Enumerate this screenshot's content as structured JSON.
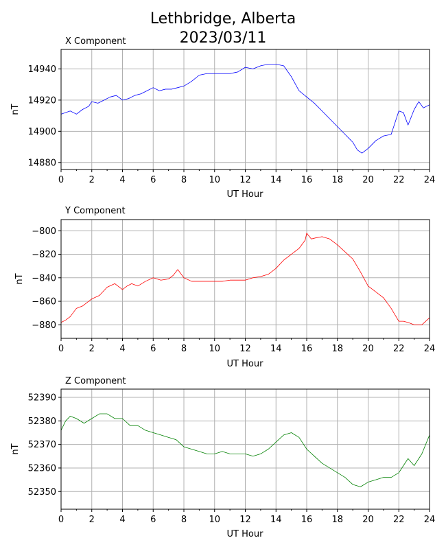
{
  "title_line1": "Lethbridge, Alberta",
  "title_line2": "2023/03/11",
  "chart_data": [
    {
      "type": "line",
      "title": "X Component",
      "xlabel": "UT Hour",
      "ylabel": "nT",
      "xlim": [
        0,
        24
      ],
      "ylim": [
        14875.5,
        14952.5
      ],
      "xticks": [
        0,
        2,
        4,
        6,
        8,
        10,
        12,
        14,
        16,
        18,
        20,
        22,
        24
      ],
      "yticks": [
        14880,
        14900,
        14920,
        14940
      ],
      "grid": true,
      "color": "#0000ff",
      "series": [
        {
          "x": [
            0,
            0.3,
            0.6,
            1.0,
            1.4,
            1.8,
            2.0,
            2.4,
            2.8,
            3.2,
            3.6,
            4.0,
            4.4,
            4.8,
            5.2,
            5.6,
            6.0,
            6.4,
            6.8,
            7.2,
            7.6,
            8.0,
            8.5,
            9.0,
            9.5,
            10.0,
            10.5,
            11.0,
            11.5,
            12.0,
            12.5,
            13.0,
            13.5,
            14.0,
            14.5,
            15.0,
            15.5,
            16.0,
            16.5,
            17.0,
            17.5,
            18.0,
            18.5,
            19.0,
            19.3,
            19.6,
            20.0,
            20.5,
            21.0,
            21.5,
            22.0,
            22.3,
            22.6,
            23.0,
            23.3,
            23.6,
            24.0
          ],
          "y": [
            14911,
            14912,
            14913,
            14911,
            14914,
            14916,
            14919,
            14918,
            14920,
            14922,
            14923,
            14920,
            14921,
            14923,
            14924,
            14926,
            14928,
            14926,
            14927,
            14927,
            14928,
            14929,
            14932,
            14936,
            14937,
            14937,
            14937,
            14937,
            14938,
            14941,
            14940,
            14942,
            14943,
            14943,
            14942,
            14935,
            14926,
            14922,
            14918,
            14913,
            14908,
            14903,
            14898,
            14893,
            14888,
            14886,
            14889,
            14894,
            14897,
            14898,
            14913,
            14912,
            14904,
            14914,
            14919,
            14915,
            14917
          ]
        }
      ]
    },
    {
      "type": "line",
      "title": "Y Component",
      "xlabel": "UT Hour",
      "ylabel": "nT",
      "xlim": [
        0,
        24
      ],
      "ylim": [
        -891.5,
        -790.5
      ],
      "xticks": [
        0,
        2,
        4,
        6,
        8,
        10,
        12,
        14,
        16,
        18,
        20,
        22,
        24
      ],
      "yticks": [
        -880,
        -860,
        -840,
        -820,
        -800
      ],
      "grid": true,
      "color": "#ff0000",
      "series": [
        {
          "x": [
            0,
            0.3,
            0.6,
            1.0,
            1.4,
            1.8,
            2.0,
            2.5,
            3.0,
            3.5,
            4.0,
            4.3,
            4.6,
            5.0,
            5.5,
            6.0,
            6.5,
            7.0,
            7.3,
            7.6,
            8.0,
            8.5,
            9.0,
            9.5,
            10.0,
            10.5,
            11.0,
            11.5,
            12.0,
            12.5,
            13.0,
            13.5,
            14.0,
            14.5,
            15.0,
            15.5,
            15.9,
            16.0,
            16.3,
            16.6,
            17.0,
            17.5,
            18.0,
            18.5,
            19.0,
            19.5,
            20.0,
            20.5,
            21.0,
            21.5,
            22.0,
            22.3,
            22.6,
            23.0,
            23.5,
            24.0
          ],
          "y": [
            -878,
            -876,
            -873,
            -866,
            -864,
            -860,
            -858,
            -855,
            -848,
            -845,
            -850,
            -847,
            -845,
            -847,
            -843,
            -840,
            -842,
            -841,
            -838,
            -833,
            -840,
            -843,
            -843,
            -843,
            -843,
            -843,
            -842,
            -842,
            -842,
            -840,
            -839,
            -837,
            -832,
            -825,
            -820,
            -815,
            -808,
            -802,
            -807,
            -806,
            -805,
            -807,
            -812,
            -818,
            -824,
            -835,
            -847,
            -852,
            -857,
            -866,
            -877,
            -877,
            -878,
            -880,
            -880,
            -874
          ]
        }
      ]
    },
    {
      "type": "line",
      "title": "Z Component",
      "xlabel": "UT Hour",
      "ylabel": "nT",
      "xlim": [
        0,
        24
      ],
      "ylim": [
        52342.5,
        52393.5
      ],
      "xticks": [
        0,
        2,
        4,
        6,
        8,
        10,
        12,
        14,
        16,
        18,
        20,
        22,
        24
      ],
      "yticks": [
        52350,
        52360,
        52370,
        52380,
        52390
      ],
      "grid": true,
      "color": "#008000",
      "series": [
        {
          "x": [
            0,
            0.3,
            0.6,
            1.0,
            1.5,
            2.0,
            2.5,
            3.0,
            3.5,
            4.0,
            4.5,
            5.0,
            5.5,
            6.0,
            6.5,
            7.0,
            7.5,
            8.0,
            8.5,
            9.0,
            9.5,
            10.0,
            10.5,
            11.0,
            11.5,
            12.0,
            12.5,
            13.0,
            13.5,
            14.0,
            14.5,
            15.0,
            15.5,
            16.0,
            16.5,
            17.0,
            17.5,
            18.0,
            18.5,
            19.0,
            19.5,
            20.0,
            20.5,
            21.0,
            21.5,
            22.0,
            22.3,
            22.6,
            23.0,
            23.5,
            24.0
          ],
          "y": [
            52376,
            52380,
            52382,
            52381,
            52379,
            52381,
            52383,
            52383,
            52381,
            52381,
            52378,
            52378,
            52376,
            52375,
            52374,
            52373,
            52372,
            52369,
            52368,
            52367,
            52366,
            52366,
            52367,
            52366,
            52366,
            52366,
            52365,
            52366,
            52368,
            52371,
            52374,
            52375,
            52373,
            52368,
            52365,
            52362,
            52360,
            52358,
            52356,
            52353,
            52352,
            52354,
            52355,
            52356,
            52356,
            52358,
            52361,
            52364,
            52361,
            52366,
            52374
          ]
        }
      ]
    }
  ]
}
